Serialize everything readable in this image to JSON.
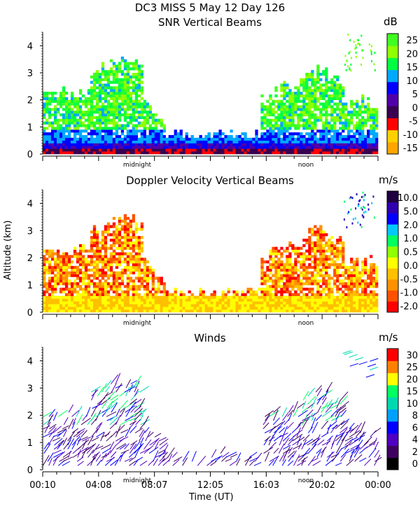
{
  "header": {
    "line1": "DC3 MISS    5 May 12 Day 126"
  },
  "shared": {
    "ylabel": "Altitude (km)",
    "xlabel": "Time (UT)",
    "midnight_label": "midnight",
    "noon_label": "noon",
    "time_ticks": [
      "00:10",
      "04:08",
      "08:07",
      "12:05",
      "16:03",
      "20:02",
      "00:00"
    ],
    "y_ticks": [
      "0",
      "1",
      "2",
      "3",
      "4"
    ]
  },
  "chart_data": [
    {
      "type": "heatmap",
      "title": "SNR Vertical Beams",
      "unit": "dB",
      "ylim": [
        0,
        4.5
      ],
      "colorbar": {
        "labels": [
          "25",
          "20",
          "15",
          "10",
          "5",
          "0",
          "-5",
          "-10",
          "-15"
        ],
        "colors": [
          "#ffa500",
          "#ffd000",
          "#ff0000",
          "#380050",
          "#5000a8",
          "#0000ff",
          "#00a8ff",
          "#00ff40",
          "#90ff00",
          "#40ff20"
        ]
      }
    },
    {
      "type": "heatmap",
      "title": "Doppler Velocity Vertical Beams",
      "unit": "m/s",
      "ylim": [
        0,
        4.5
      ],
      "colorbar": {
        "labels": [
          "10.0",
          "5.0",
          "2.0",
          "1.0",
          "0.5",
          "0.0",
          "-0.5",
          "-1.0",
          "-2.0"
        ],
        "colors": [
          "#ff0000",
          "#ff5000",
          "#ff9000",
          "#ffc000",
          "#ffff00",
          "#90ff00",
          "#00ff60",
          "#00c8ff",
          "#0000ff",
          "#3000b0",
          "#200040"
        ]
      }
    },
    {
      "type": "scatter",
      "title": "Winds",
      "unit": "m/s",
      "ylim": [
        0,
        4.5
      ],
      "colorbar": {
        "labels": [
          "30",
          "25",
          "20",
          "15",
          "10",
          "8",
          "6",
          "4",
          "2",
          "0"
        ],
        "colors": [
          "#000000",
          "#400060",
          "#5000c0",
          "#0000ff",
          "#00a0ff",
          "#00d8b0",
          "#00ff60",
          "#ffff00",
          "#ff8000",
          "#ff0000"
        ]
      }
    }
  ]
}
